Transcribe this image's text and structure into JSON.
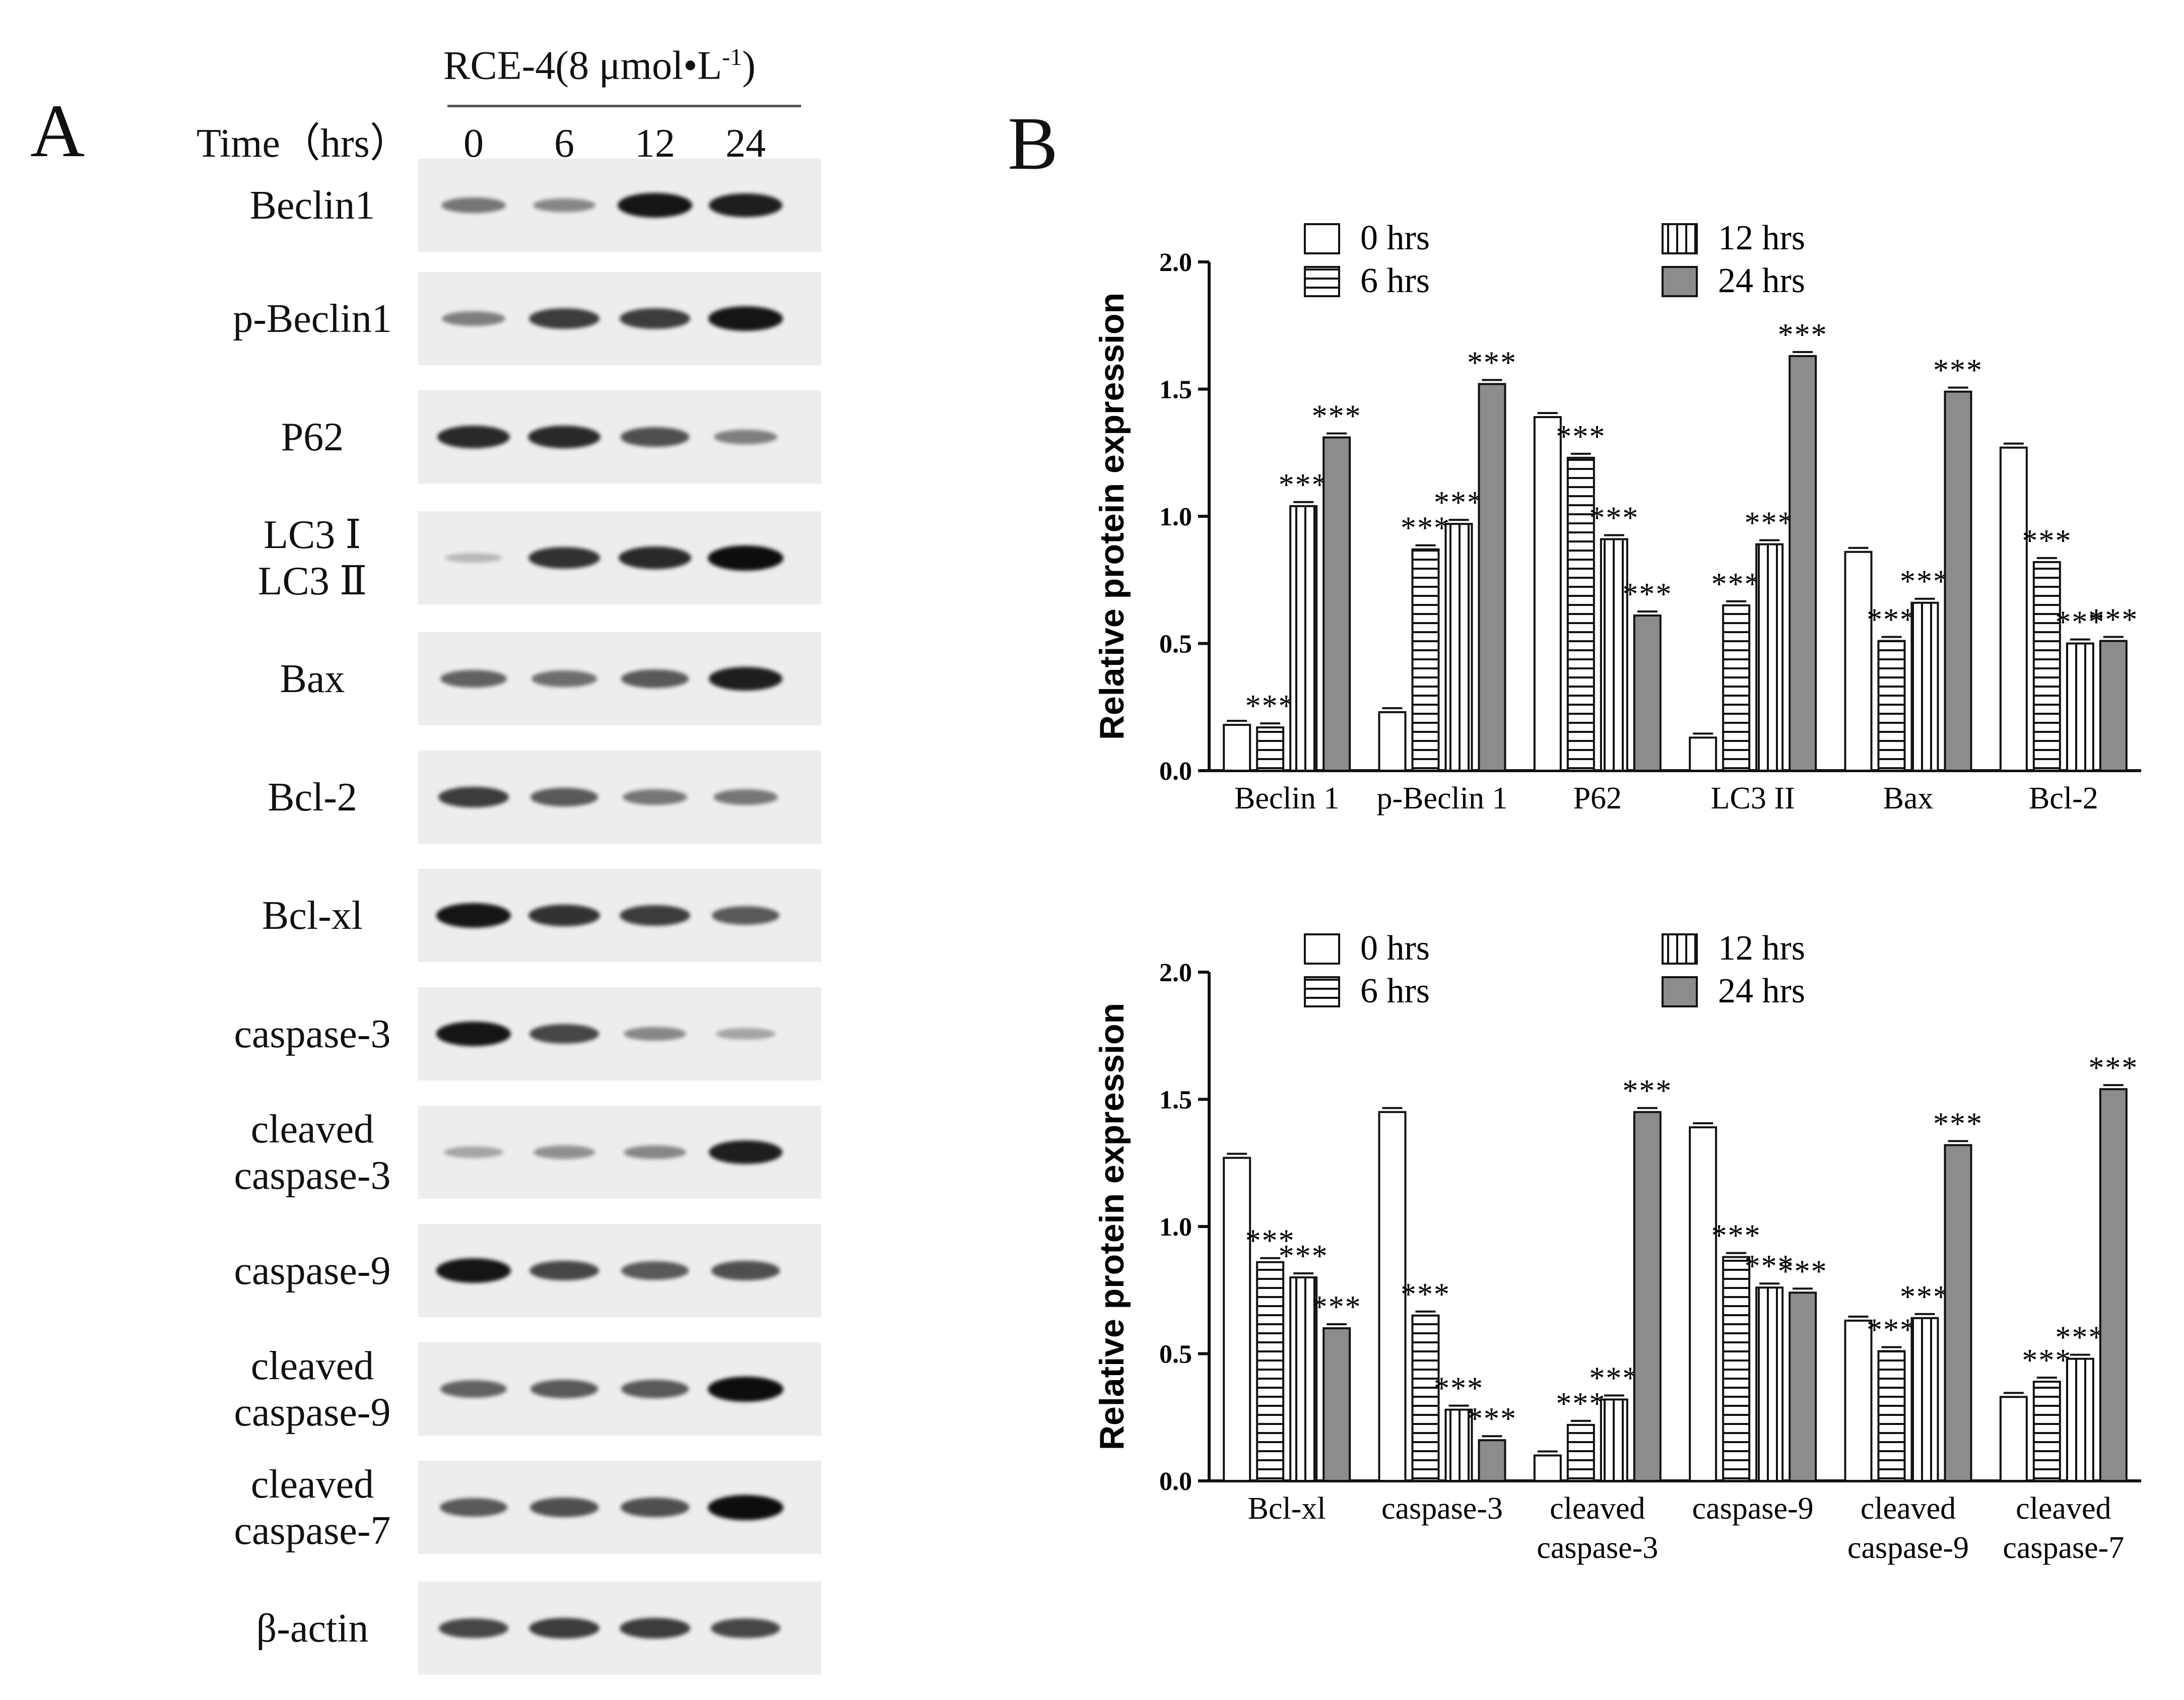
{
  "panel_a": {
    "letter": "A",
    "treatment": "RCE-4(8 μmol•L",
    "treatment_sup": "-1",
    "treatment_close": ")",
    "time_label": "Time（hrs）",
    "time_points": [
      "0",
      "6",
      "12",
      "24"
    ],
    "blots": [
      {
        "label_lines": [
          "Beclin1"
        ],
        "intensities": [
          0.45,
          0.35,
          0.95,
          0.9
        ]
      },
      {
        "label_lines": [
          "p-Beclin1"
        ],
        "intensities": [
          0.4,
          0.75,
          0.75,
          0.95
        ]
      },
      {
        "label_lines": [
          "P62"
        ],
        "intensities": [
          0.85,
          0.85,
          0.65,
          0.4
        ]
      },
      {
        "label_lines": [
          "LC3 Ⅰ",
          "LC3 Ⅱ"
        ],
        "intensities": [
          0.1,
          0.8,
          0.85,
          1.0
        ]
      },
      {
        "label_lines": [
          "Bax"
        ],
        "intensities": [
          0.55,
          0.5,
          0.6,
          0.9
        ]
      },
      {
        "label_lines": [
          "Bcl-2"
        ],
        "intensities": [
          0.75,
          0.6,
          0.45,
          0.45
        ]
      },
      {
        "label_lines": [
          "Bcl-xl"
        ],
        "intensities": [
          0.95,
          0.8,
          0.75,
          0.6
        ]
      },
      {
        "label_lines": [
          "caspase-3"
        ],
        "intensities": [
          0.95,
          0.7,
          0.35,
          0.2
        ]
      },
      {
        "label_lines": [
          "cleaved",
          "caspase-3"
        ],
        "intensities": [
          0.2,
          0.3,
          0.35,
          0.9
        ]
      },
      {
        "label_lines": [
          "caspase-9"
        ],
        "intensities": [
          0.95,
          0.7,
          0.6,
          0.65
        ]
      },
      {
        "label_lines": [
          "cleaved",
          "caspase-9"
        ],
        "intensities": [
          0.55,
          0.6,
          0.6,
          1.0
        ]
      },
      {
        "label_lines": [
          "cleaved",
          "caspase-7"
        ],
        "intensities": [
          0.6,
          0.65,
          0.65,
          1.0
        ]
      },
      {
        "label_lines": [
          "β-actin"
        ],
        "intensities": [
          0.7,
          0.75,
          0.75,
          0.7
        ]
      }
    ]
  },
  "panel_b": {
    "letter": "B"
  },
  "chart_data": [
    {
      "type": "bar",
      "ylabel": "Relative protein expression",
      "ylim": [
        0.0,
        2.0
      ],
      "yticks": [
        "0.0",
        "0.5",
        "1.0",
        "1.5",
        "2.0"
      ],
      "legend": [
        "0 hrs",
        "6 hrs",
        "12 hrs",
        "24 hrs"
      ],
      "categories": [
        [
          "Beclin 1"
        ],
        [
          "p-Beclin 1"
        ],
        [
          "P62"
        ],
        [
          "LC3 II"
        ],
        [
          "Bax"
        ],
        [
          "Bcl-2"
        ]
      ],
      "series": [
        {
          "name": "0 hrs",
          "values": [
            0.18,
            0.23,
            1.39,
            0.13,
            0.86,
            1.27
          ]
        },
        {
          "name": "6 hrs",
          "values": [
            0.17,
            0.87,
            1.23,
            0.65,
            0.51,
            0.82
          ]
        },
        {
          "name": "12 hrs",
          "values": [
            1.04,
            0.97,
            0.91,
            0.89,
            0.66,
            0.5
          ]
        },
        {
          "name": "24 hrs",
          "values": [
            1.31,
            1.52,
            0.61,
            1.63,
            1.49,
            0.51
          ]
        }
      ],
      "significance": "***",
      "sig_marks": [
        [
          false,
          true,
          true,
          true
        ],
        [
          false,
          true,
          true,
          true
        ],
        [
          false,
          true,
          true,
          true
        ],
        [
          false,
          true,
          true,
          true
        ],
        [
          false,
          true,
          true,
          true
        ],
        [
          false,
          true,
          true,
          true
        ]
      ]
    },
    {
      "type": "bar",
      "ylabel": "Relative protein expression",
      "ylim": [
        0.0,
        2.0
      ],
      "yticks": [
        "0.0",
        "0.5",
        "1.0",
        "1.5",
        "2.0"
      ],
      "legend": [
        "0 hrs",
        "6 hrs",
        "12 hrs",
        "24 hrs"
      ],
      "categories": [
        [
          "Bcl-xl"
        ],
        [
          "caspase-3"
        ],
        [
          "cleaved",
          "caspase-3"
        ],
        [
          "caspase-9"
        ],
        [
          "cleaved",
          "caspase-9"
        ],
        [
          "cleaved",
          "caspase-7"
        ]
      ],
      "series": [
        {
          "name": "0 hrs",
          "values": [
            1.27,
            1.45,
            0.1,
            1.39,
            0.63,
            0.33
          ]
        },
        {
          "name": "6 hrs",
          "values": [
            0.86,
            0.65,
            0.22,
            0.88,
            0.51,
            0.39
          ]
        },
        {
          "name": "12 hrs",
          "values": [
            0.8,
            0.28,
            0.32,
            0.76,
            0.64,
            0.48
          ]
        },
        {
          "name": "24 hrs",
          "values": [
            0.6,
            0.16,
            1.45,
            0.74,
            1.32,
            1.54
          ]
        }
      ],
      "significance": "***",
      "sig_marks": [
        [
          false,
          true,
          true,
          true
        ],
        [
          false,
          true,
          true,
          true
        ],
        [
          false,
          true,
          true,
          true
        ],
        [
          false,
          true,
          true,
          true
        ],
        [
          false,
          true,
          true,
          true
        ],
        [
          false,
          true,
          true,
          true
        ]
      ]
    }
  ],
  "colors": {
    "bar_24h": "#8c8c8c",
    "stroke": "#111111",
    "band": "#0d0d0d"
  }
}
